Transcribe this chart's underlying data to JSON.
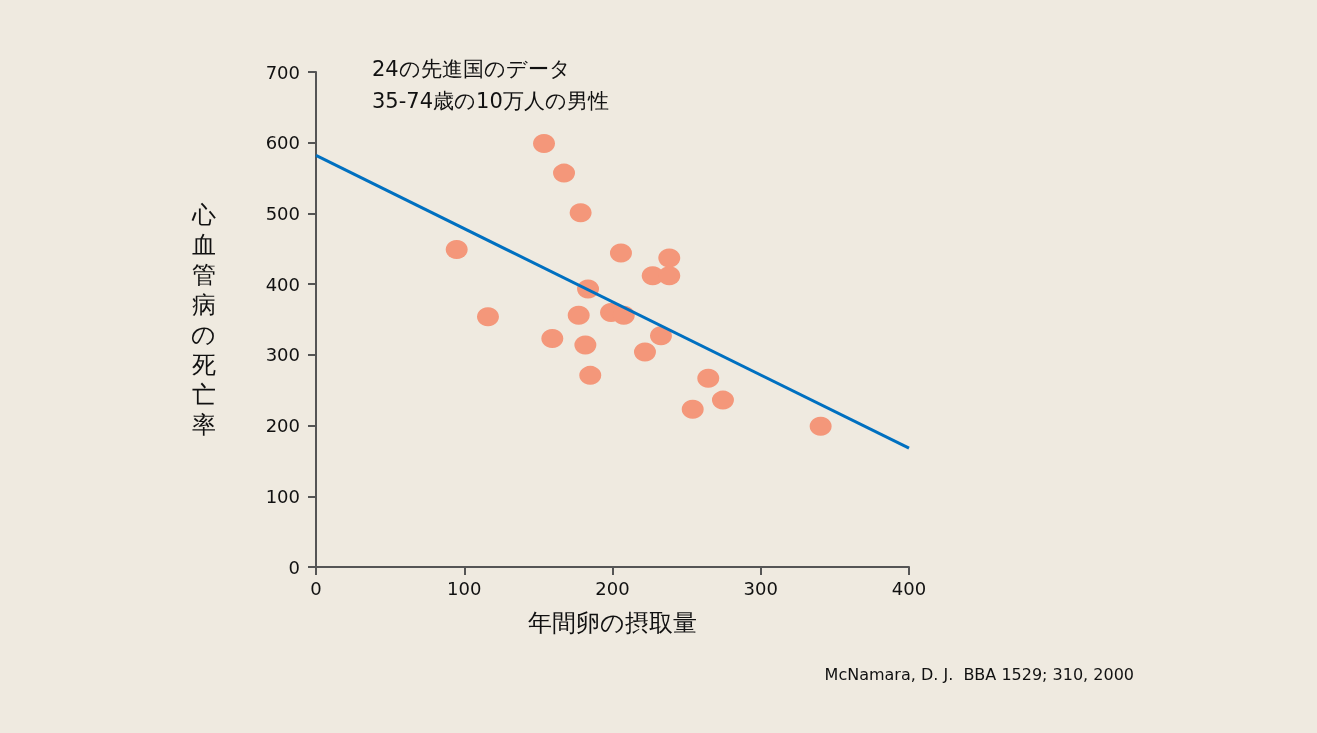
{
  "chart_data": {
    "type": "scatter",
    "xlabel": "年間卵の摂取量",
    "ylabel": "心血管病の死亡率",
    "annotations": [
      "24の先進国のデータ",
      "35-74歳の10万人の男性",
      "McNamara, D. J.  BBA 1529; 310, 2000"
    ],
    "xlim": [
      0,
      400
    ],
    "xticks": [
      0,
      100,
      200,
      300,
      400
    ],
    "ylim": [
      0,
      700
    ],
    "yticks": [
      0,
      100,
      200,
      300,
      400,
      500,
      600,
      700
    ],
    "grid": false,
    "marker": "circle",
    "series": [
      {
        "color": "#f4977a",
        "x": [
          153.8,
          167.3,
          178.5,
          94.9,
          205.7,
          238.3,
          227.1,
          238.3,
          183.5,
          116,
          177.2,
          199,
          207.6,
          159.4,
          181.7,
          232.7,
          221.9,
          185,
          264.6,
          274.5,
          254.1,
          340.4
        ],
        "values": [
          599,
          557,
          501,
          449,
          444,
          437,
          412,
          412,
          393,
          354,
          356,
          360,
          356,
          323,
          314,
          327,
          304,
          271,
          267,
          236,
          223,
          199
        ]
      },
      {
        "type": "line",
        "color": "#0070c0",
        "x": [
          0,
          400
        ],
        "values": [
          582,
          168
        ],
        "marker": "none",
        "line_style": "solid"
      }
    ]
  }
}
